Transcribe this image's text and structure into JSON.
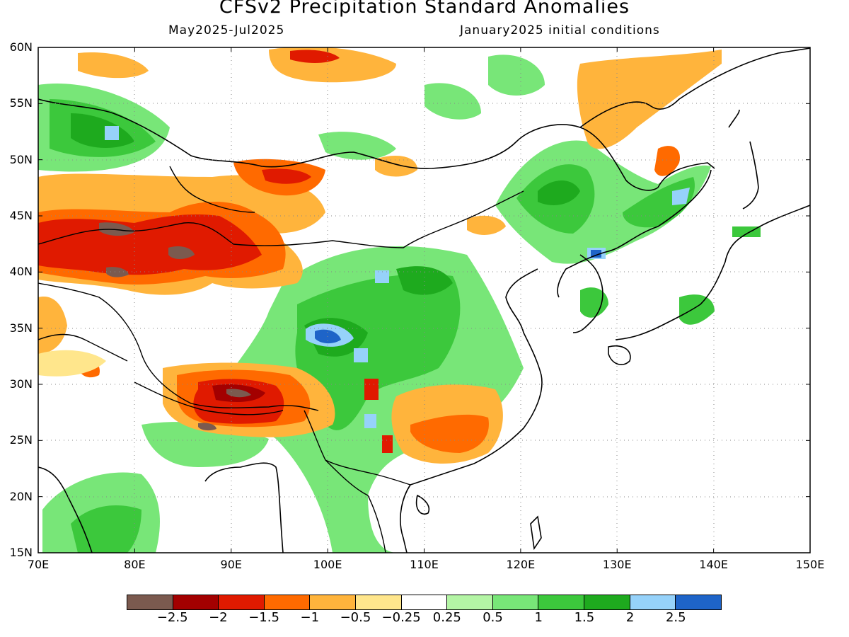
{
  "title": "CFSv2 Precipitation Standard Anomalies",
  "subtitle_left": "May2025-Jul2025",
  "subtitle_right": "January2025 initial conditions",
  "map": {
    "lon_range": [
      70,
      150
    ],
    "lat_range": [
      15,
      60
    ],
    "lat_ticks": [
      "60N",
      "55N",
      "50N",
      "45N",
      "40N",
      "35N",
      "30N",
      "25N",
      "20N",
      "15N"
    ],
    "lon_ticks": [
      "70E",
      "80E",
      "90E",
      "100E",
      "110E",
      "120E",
      "130E",
      "140E",
      "150E"
    ],
    "grid": "dotted"
  },
  "colorbar": {
    "colors": [
      "#7b5a4f",
      "#a30000",
      "#e01a00",
      "#ff6a00",
      "#ffb43c",
      "#ffe68c",
      "#ffffff",
      "#b4f5a5",
      "#78e678",
      "#3cc83c",
      "#1eaa1e",
      "#96d2fa",
      "#1e64c8"
    ],
    "labels": [
      "-2.5",
      "-2",
      "-1.5",
      "-1",
      "-0.5",
      "-0.25",
      "0.25",
      "0.5",
      "1",
      "1.5",
      "2",
      "2.5"
    ]
  },
  "anomaly_regions": [
    {
      "level": "-2.5",
      "center": [
        88.5,
        41.0
      ]
    },
    {
      "level": "-2.5",
      "center": [
        79.5,
        43.8
      ]
    },
    {
      "level": "-2.5",
      "center": [
        91.5,
        29.0
      ]
    },
    {
      "level": "-2",
      "center": [
        87.0,
        42.0
      ]
    },
    {
      "level": "-2",
      "center": [
        72.0,
        40.5
      ]
    },
    {
      "level": "-2",
      "center": [
        97.0,
        48.0
      ]
    },
    {
      "level": "-2",
      "center": [
        92.5,
        27.0
      ]
    },
    {
      "level": "-1.5",
      "center": [
        90.0,
        41.0
      ]
    },
    {
      "level": "-1.5",
      "center": [
        77.0,
        44.5
      ]
    },
    {
      "level": "-1.5",
      "center": [
        103.5,
        29.5
      ]
    },
    {
      "level": "-1.5",
      "center": [
        115.0,
        25.8
      ]
    },
    {
      "level": "-1",
      "center": [
        93.0,
        41.0
      ]
    },
    {
      "level": "-1",
      "center": [
        114.0,
        26.5
      ]
    },
    {
      "level": "-1",
      "center": [
        91.0,
        28.5
      ]
    },
    {
      "level": "-0.5",
      "center": [
        96.0,
        58.5
      ]
    },
    {
      "level": "-0.5",
      "center": [
        113.0,
        26.0
      ]
    },
    {
      "level": "-0.5",
      "center": [
        132.5,
        52.0
      ]
    },
    {
      "level": "1",
      "center": [
        106.0,
        35.0
      ]
    },
    {
      "level": "1",
      "center": [
        77.5,
        52.5
      ]
    },
    {
      "level": "1",
      "center": [
        123.0,
        45.5
      ]
    },
    {
      "level": "1",
      "center": [
        77.0,
        17.5
      ]
    },
    {
      "level": "1.5",
      "center": [
        101.0,
        35.0
      ]
    },
    {
      "level": "1.5",
      "center": [
        124.0,
        47.0
      ]
    },
    {
      "level": "2",
      "center": [
        100.0,
        34.8
      ]
    },
    {
      "level": "2.5",
      "center": [
        100.0,
        34.7
      ]
    },
    {
      "level": "2",
      "center": [
        127.5,
        41.0
      ]
    }
  ]
}
